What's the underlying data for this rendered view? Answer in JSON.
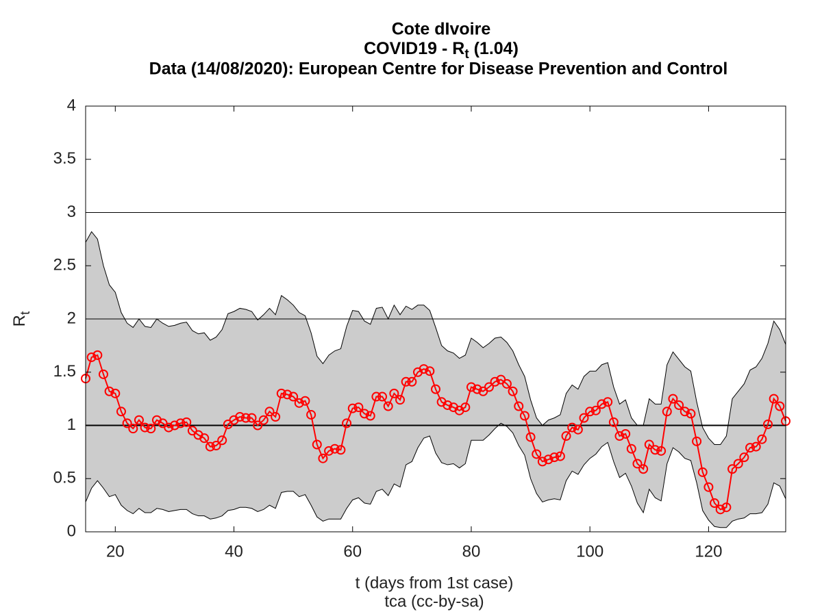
{
  "chart_data": {
    "type": "line",
    "title": [
      "Cote dIvoire",
      [
        "COVID19 - R",
        "t",
        " (1.04)"
      ],
      "Data (14/08/2020): European Centre for Disease Prevention and Control"
    ],
    "xlabel": "t (days from 1st case)",
    "ylabel": [
      "R",
      "t"
    ],
    "caption": "tca (cc-by-sa)",
    "color": "#ff0000",
    "band_color": "#cccccc",
    "reference_lines": [
      1,
      2,
      3
    ],
    "xlim": [
      15,
      133
    ],
    "ylim": [
      0,
      4
    ],
    "xticks": [
      20,
      40,
      60,
      80,
      100,
      120
    ],
    "yticks": [
      0,
      0.5,
      1,
      1.5,
      2,
      2.5,
      3,
      3.5,
      4
    ],
    "x": [
      15,
      16,
      17,
      18,
      19,
      20,
      21,
      22,
      23,
      24,
      25,
      26,
      27,
      28,
      29,
      30,
      31,
      32,
      33,
      34,
      35,
      36,
      37,
      38,
      39,
      40,
      41,
      42,
      43,
      44,
      45,
      46,
      47,
      48,
      49,
      50,
      51,
      52,
      53,
      54,
      55,
      56,
      57,
      58,
      59,
      60,
      61,
      62,
      63,
      64,
      65,
      66,
      67,
      68,
      69,
      70,
      71,
      72,
      73,
      74,
      75,
      76,
      77,
      78,
      79,
      80,
      81,
      82,
      83,
      84,
      85,
      86,
      87,
      88,
      89,
      90,
      91,
      92,
      93,
      94,
      95,
      96,
      97,
      98,
      99,
      100,
      101,
      102,
      103,
      104,
      105,
      106,
      107,
      108,
      109,
      110,
      111,
      112,
      113,
      114,
      115,
      116,
      117,
      118,
      119,
      120,
      121,
      122,
      123,
      124,
      125,
      126,
      127,
      128,
      129,
      130,
      131,
      132,
      133
    ],
    "values": [
      1.44,
      1.64,
      1.66,
      1.48,
      1.32,
      1.3,
      1.13,
      1.02,
      0.97,
      1.05,
      0.98,
      0.97,
      1.05,
      1.02,
      0.98,
      1.0,
      1.02,
      1.03,
      0.95,
      0.91,
      0.88,
      0.8,
      0.81,
      0.86,
      1.01,
      1.05,
      1.08,
      1.07,
      1.07,
      1.0,
      1.05,
      1.13,
      1.08,
      1.3,
      1.29,
      1.27,
      1.21,
      1.23,
      1.1,
      0.82,
      0.69,
      0.76,
      0.78,
      0.77,
      1.02,
      1.16,
      1.17,
      1.11,
      1.09,
      1.27,
      1.27,
      1.18,
      1.3,
      1.24,
      1.41,
      1.41,
      1.5,
      1.53,
      1.51,
      1.34,
      1.22,
      1.19,
      1.17,
      1.14,
      1.17,
      1.36,
      1.34,
      1.32,
      1.36,
      1.41,
      1.43,
      1.39,
      1.32,
      1.18,
      1.09,
      0.89,
      0.73,
      0.66,
      0.68,
      0.7,
      0.71,
      0.9,
      0.98,
      0.96,
      1.07,
      1.13,
      1.14,
      1.2,
      1.22,
      1.03,
      0.9,
      0.92,
      0.78,
      0.64,
      0.59,
      0.82,
      0.77,
      0.76,
      1.13,
      1.25,
      1.19,
      1.13,
      1.11,
      0.85,
      0.56,
      0.42,
      0.27,
      0.21,
      0.23,
      0.59,
      0.64,
      0.7,
      0.79,
      0.8,
      0.87,
      1.01,
      1.25,
      1.18,
      1.04
    ],
    "upper": [
      2.72,
      2.82,
      2.75,
      2.5,
      2.32,
      2.25,
      2.06,
      1.96,
      1.92,
      2.0,
      1.93,
      1.92,
      2.0,
      1.96,
      1.93,
      1.94,
      1.96,
      1.97,
      1.89,
      1.86,
      1.87,
      1.8,
      1.83,
      1.9,
      2.05,
      2.07,
      2.1,
      2.09,
      2.07,
      1.99,
      2.04,
      2.1,
      2.04,
      2.22,
      2.18,
      2.13,
      2.06,
      2.03,
      1.87,
      1.65,
      1.58,
      1.66,
      1.7,
      1.72,
      1.93,
      2.08,
      2.07,
      1.98,
      1.95,
      2.1,
      2.11,
      2.0,
      2.13,
      2.04,
      2.12,
      2.09,
      2.13,
      2.13,
      2.08,
      1.92,
      1.75,
      1.7,
      1.68,
      1.63,
      1.66,
      1.82,
      1.78,
      1.73,
      1.77,
      1.82,
      1.83,
      1.78,
      1.7,
      1.57,
      1.46,
      1.24,
      1.07,
      1.0,
      1.05,
      1.07,
      1.1,
      1.3,
      1.38,
      1.34,
      1.46,
      1.51,
      1.51,
      1.57,
      1.59,
      1.36,
      1.2,
      1.24,
      1.07,
      1.0,
      1.0,
      1.25,
      1.2,
      1.2,
      1.57,
      1.69,
      1.62,
      1.55,
      1.51,
      1.22,
      0.98,
      0.88,
      0.82,
      0.82,
      0.9,
      1.25,
      1.32,
      1.39,
      1.52,
      1.55,
      1.63,
      1.77,
      1.98,
      1.9,
      1.76
    ],
    "lower": [
      0.28,
      0.41,
      0.48,
      0.41,
      0.33,
      0.35,
      0.25,
      0.2,
      0.17,
      0.22,
      0.18,
      0.18,
      0.22,
      0.21,
      0.19,
      0.2,
      0.21,
      0.21,
      0.17,
      0.15,
      0.15,
      0.12,
      0.13,
      0.15,
      0.2,
      0.21,
      0.23,
      0.23,
      0.22,
      0.19,
      0.21,
      0.25,
      0.22,
      0.37,
      0.38,
      0.38,
      0.33,
      0.35,
      0.25,
      0.14,
      0.1,
      0.12,
      0.12,
      0.12,
      0.22,
      0.3,
      0.32,
      0.27,
      0.26,
      0.38,
      0.4,
      0.34,
      0.45,
      0.42,
      0.63,
      0.66,
      0.79,
      0.88,
      0.9,
      0.74,
      0.65,
      0.63,
      0.64,
      0.6,
      0.64,
      0.86,
      0.86,
      0.86,
      0.91,
      0.97,
      1.02,
      0.99,
      0.93,
      0.81,
      0.72,
      0.5,
      0.36,
      0.28,
      0.3,
      0.31,
      0.3,
      0.48,
      0.57,
      0.54,
      0.63,
      0.69,
      0.73,
      0.8,
      0.84,
      0.66,
      0.51,
      0.55,
      0.43,
      0.27,
      0.18,
      0.4,
      0.32,
      0.29,
      0.64,
      0.79,
      0.75,
      0.69,
      0.67,
      0.46,
      0.2,
      0.11,
      0.05,
      0.04,
      0.04,
      0.1,
      0.12,
      0.13,
      0.17,
      0.17,
      0.18,
      0.26,
      0.46,
      0.43,
      0.31
    ]
  }
}
